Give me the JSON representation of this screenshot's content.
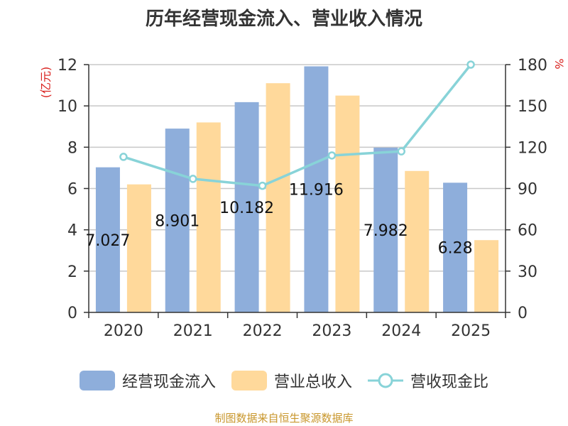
{
  "chart_data": {
    "type": "bar",
    "title": "历年经营现金流入、营业收入情况",
    "categories": [
      "2020",
      "2021",
      "2022",
      "2023",
      "2024",
      "2025"
    ],
    "series": [
      {
        "name": "经营现金流入",
        "type": "bar",
        "axis": "left",
        "color": "#8eaedb",
        "values": [
          7.027,
          8.901,
          10.182,
          11.916,
          7.982,
          6.28
        ],
        "labels": [
          "7.027",
          "8.901",
          "10.182",
          "11.916",
          "7.982",
          "6.28"
        ]
      },
      {
        "name": "营业总收入",
        "type": "bar",
        "axis": "left",
        "color": "#ffd99b",
        "values": [
          6.2,
          9.2,
          11.1,
          10.5,
          6.85,
          3.5
        ]
      },
      {
        "name": "营收现金比",
        "type": "line",
        "axis": "right",
        "color": "#88d3d8",
        "values": [
          113,
          97,
          92,
          114,
          117,
          180
        ]
      }
    ],
    "left_axis": {
      "unit": "(亿元)",
      "ylim": [
        0,
        12
      ],
      "ticks": [
        "0",
        "2",
        "4",
        "6",
        "8",
        "10",
        "12"
      ]
    },
    "right_axis": {
      "unit": "%",
      "ylim": [
        0,
        180
      ],
      "ticks": [
        "0",
        "30",
        "60",
        "90",
        "120",
        "150",
        "180"
      ]
    },
    "grid": true,
    "legend_position": "bottom"
  },
  "source": "制图数据来自恒生聚源数据库"
}
